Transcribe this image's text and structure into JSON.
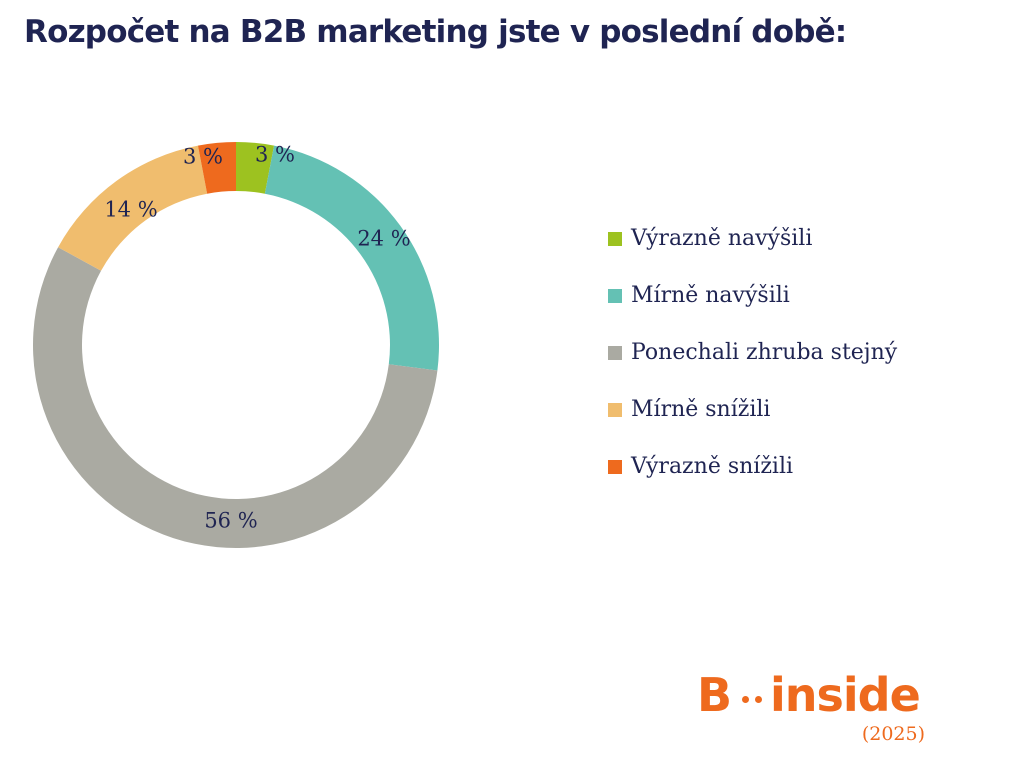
{
  "page": {
    "title": "Rozpočet na B2B marketing jste v poslední době:"
  },
  "chart_data": {
    "type": "pie",
    "style": "donut",
    "title": "Rozpočet na B2B marketing jste v poslední době:",
    "legend_position": "right",
    "unit": "%",
    "categories": [
      "Výrazně navýšili",
      "Mírně navýšili",
      "Ponechali zhruba stejný",
      "Mírně snížili",
      "Výrazně snížili"
    ],
    "values": [
      3,
      24,
      56,
      14,
      3
    ],
    "data_labels": [
      "3 %",
      "24 %",
      "56 %",
      "14 %",
      "3 %"
    ],
    "colors": [
      "#9dc220",
      "#64c1b4",
      "#aaaaa2",
      "#f0bd6e",
      "#ee6a1e"
    ]
  },
  "brand": {
    "letter": "B",
    "word": "inside",
    "year": "(2025)",
    "color": "#ee6a1e"
  }
}
